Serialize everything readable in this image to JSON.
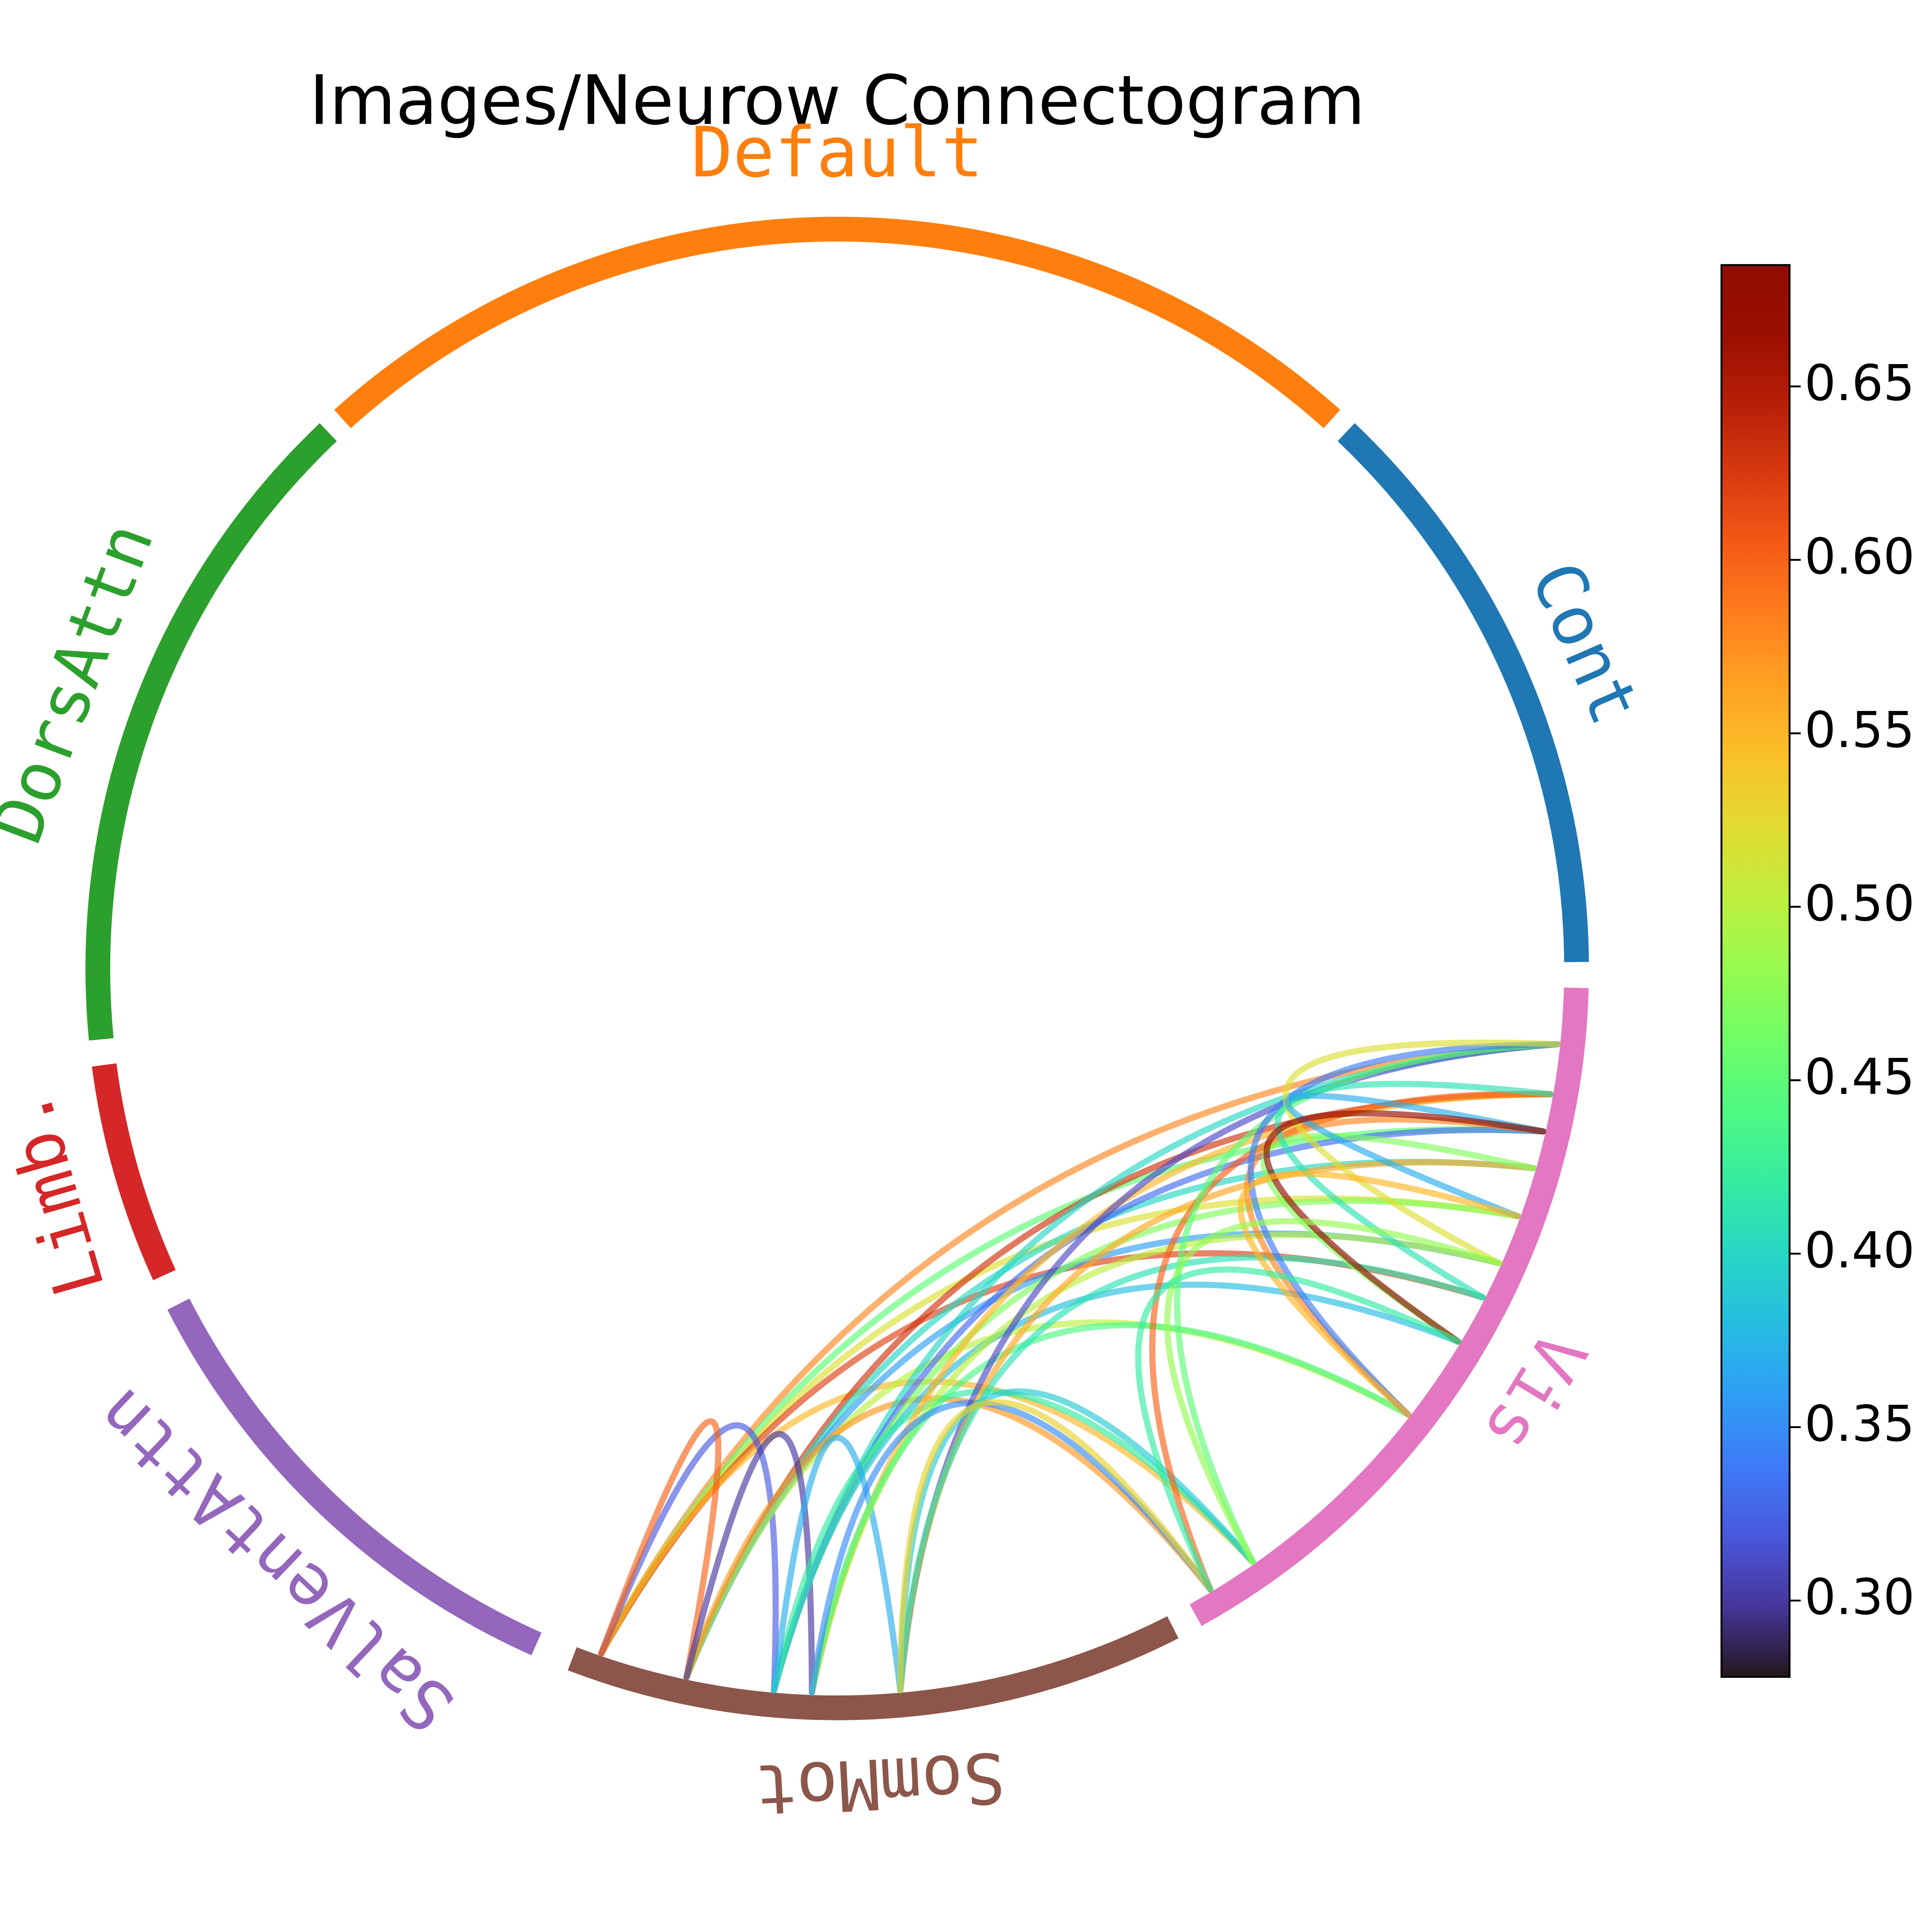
{
  "chart_data": {
    "type": "chord",
    "title": "Images/Neurow Connectogram",
    "groups": [
      {
        "name": "Cont",
        "color": "#1f77b4",
        "start": 0.5,
        "end": 46.5
      },
      {
        "name": "Default",
        "color": "#ff7f0e",
        "start": 48,
        "end": 132
      },
      {
        "name": "DorsAttn",
        "color": "#2ca02c",
        "start": 133.5,
        "end": 185.5
      },
      {
        "name": "Limb.",
        "color": "#d62728",
        "start": 187.5,
        "end": 204.5
      },
      {
        "name": "SalVentAttn",
        "color": "#9467bd",
        "start": 207,
        "end": 246
      },
      {
        "name": "SomMot",
        "color": "#8c564b",
        "start": 249,
        "end": 297
      },
      {
        "name": "Vis",
        "color": "#e377c2",
        "start": 299,
        "end": 358.5
      }
    ],
    "edges": [
      {
        "source": 251,
        "target": 354,
        "value": 0.58
      },
      {
        "source": 251,
        "target": 347,
        "value": 0.45
      },
      {
        "source": 251,
        "target": 340,
        "value": 0.52
      },
      {
        "source": 251,
        "target": 333,
        "value": 0.62
      },
      {
        "source": 251,
        "target": 305,
        "value": 0.55
      },
      {
        "source": 251,
        "target": 265,
        "value": 0.32
      },
      {
        "source": 251,
        "target": 258,
        "value": 0.6
      },
      {
        "source": 258,
        "target": 350,
        "value": 0.63
      },
      {
        "source": 258,
        "target": 344,
        "value": 0.4
      },
      {
        "source": 258,
        "target": 336,
        "value": 0.36
      },
      {
        "source": 258,
        "target": 322,
        "value": 0.5
      },
      {
        "source": 258,
        "target": 301,
        "value": 0.57
      },
      {
        "source": 258,
        "target": 268,
        "value": 0.3
      },
      {
        "source": 265,
        "target": 354,
        "value": 0.4
      },
      {
        "source": 265,
        "target": 347,
        "value": 0.33
      },
      {
        "source": 265,
        "target": 340,
        "value": 0.47
      },
      {
        "source": 265,
        "target": 329,
        "value": 0.38
      },
      {
        "source": 265,
        "target": 305,
        "value": 0.42
      },
      {
        "source": 265,
        "target": 275,
        "value": 0.37
      },
      {
        "source": 268,
        "target": 350,
        "value": 0.55
      },
      {
        "source": 268,
        "target": 336,
        "value": 0.5
      },
      {
        "source": 268,
        "target": 322,
        "value": 0.44
      },
      {
        "source": 268,
        "target": 301,
        "value": 0.35
      },
      {
        "source": 275,
        "target": 354,
        "value": 0.31
      },
      {
        "source": 275,
        "target": 344,
        "value": 0.56
      },
      {
        "source": 275,
        "target": 333,
        "value": 0.41
      },
      {
        "source": 275,
        "target": 305,
        "value": 0.39
      },
      {
        "source": 275,
        "target": 301,
        "value": 0.53
      },
      {
        "source": 301,
        "target": 350,
        "value": 0.6
      },
      {
        "source": 305,
        "target": 354,
        "value": 0.45
      },
      {
        "source": 322,
        "target": 347,
        "value": 0.58
      },
      {
        "source": 322,
        "target": 354,
        "value": 0.34
      },
      {
        "source": 329,
        "target": 344,
        "value": 0.47
      },
      {
        "source": 333,
        "target": 350,
        "value": 0.41
      },
      {
        "source": 336,
        "target": 354,
        "value": 0.52
      },
      {
        "source": 340,
        "target": 347,
        "value": 0.37
      },
      {
        "source": 329,
        "target": 347,
        "value": 0.68
      },
      {
        "source": 322,
        "target": 340,
        "value": 0.55
      },
      {
        "source": 305,
        "target": 336,
        "value": 0.48
      },
      {
        "source": 301,
        "target": 329,
        "value": 0.42
      }
    ],
    "colormap": "turbo",
    "clim": [
      0.278,
      0.685
    ],
    "cticks": [
      {
        "value": 0.3,
        "label": "0.30"
      },
      0.35,
      {
        "value": 0.4,
        "label": "0.40"
      },
      0.45,
      {
        "value": 0.5,
        "label": "0.50"
      },
      0.55,
      {
        "value": 0.6,
        "label": "0.60"
      },
      0.65
    ]
  }
}
